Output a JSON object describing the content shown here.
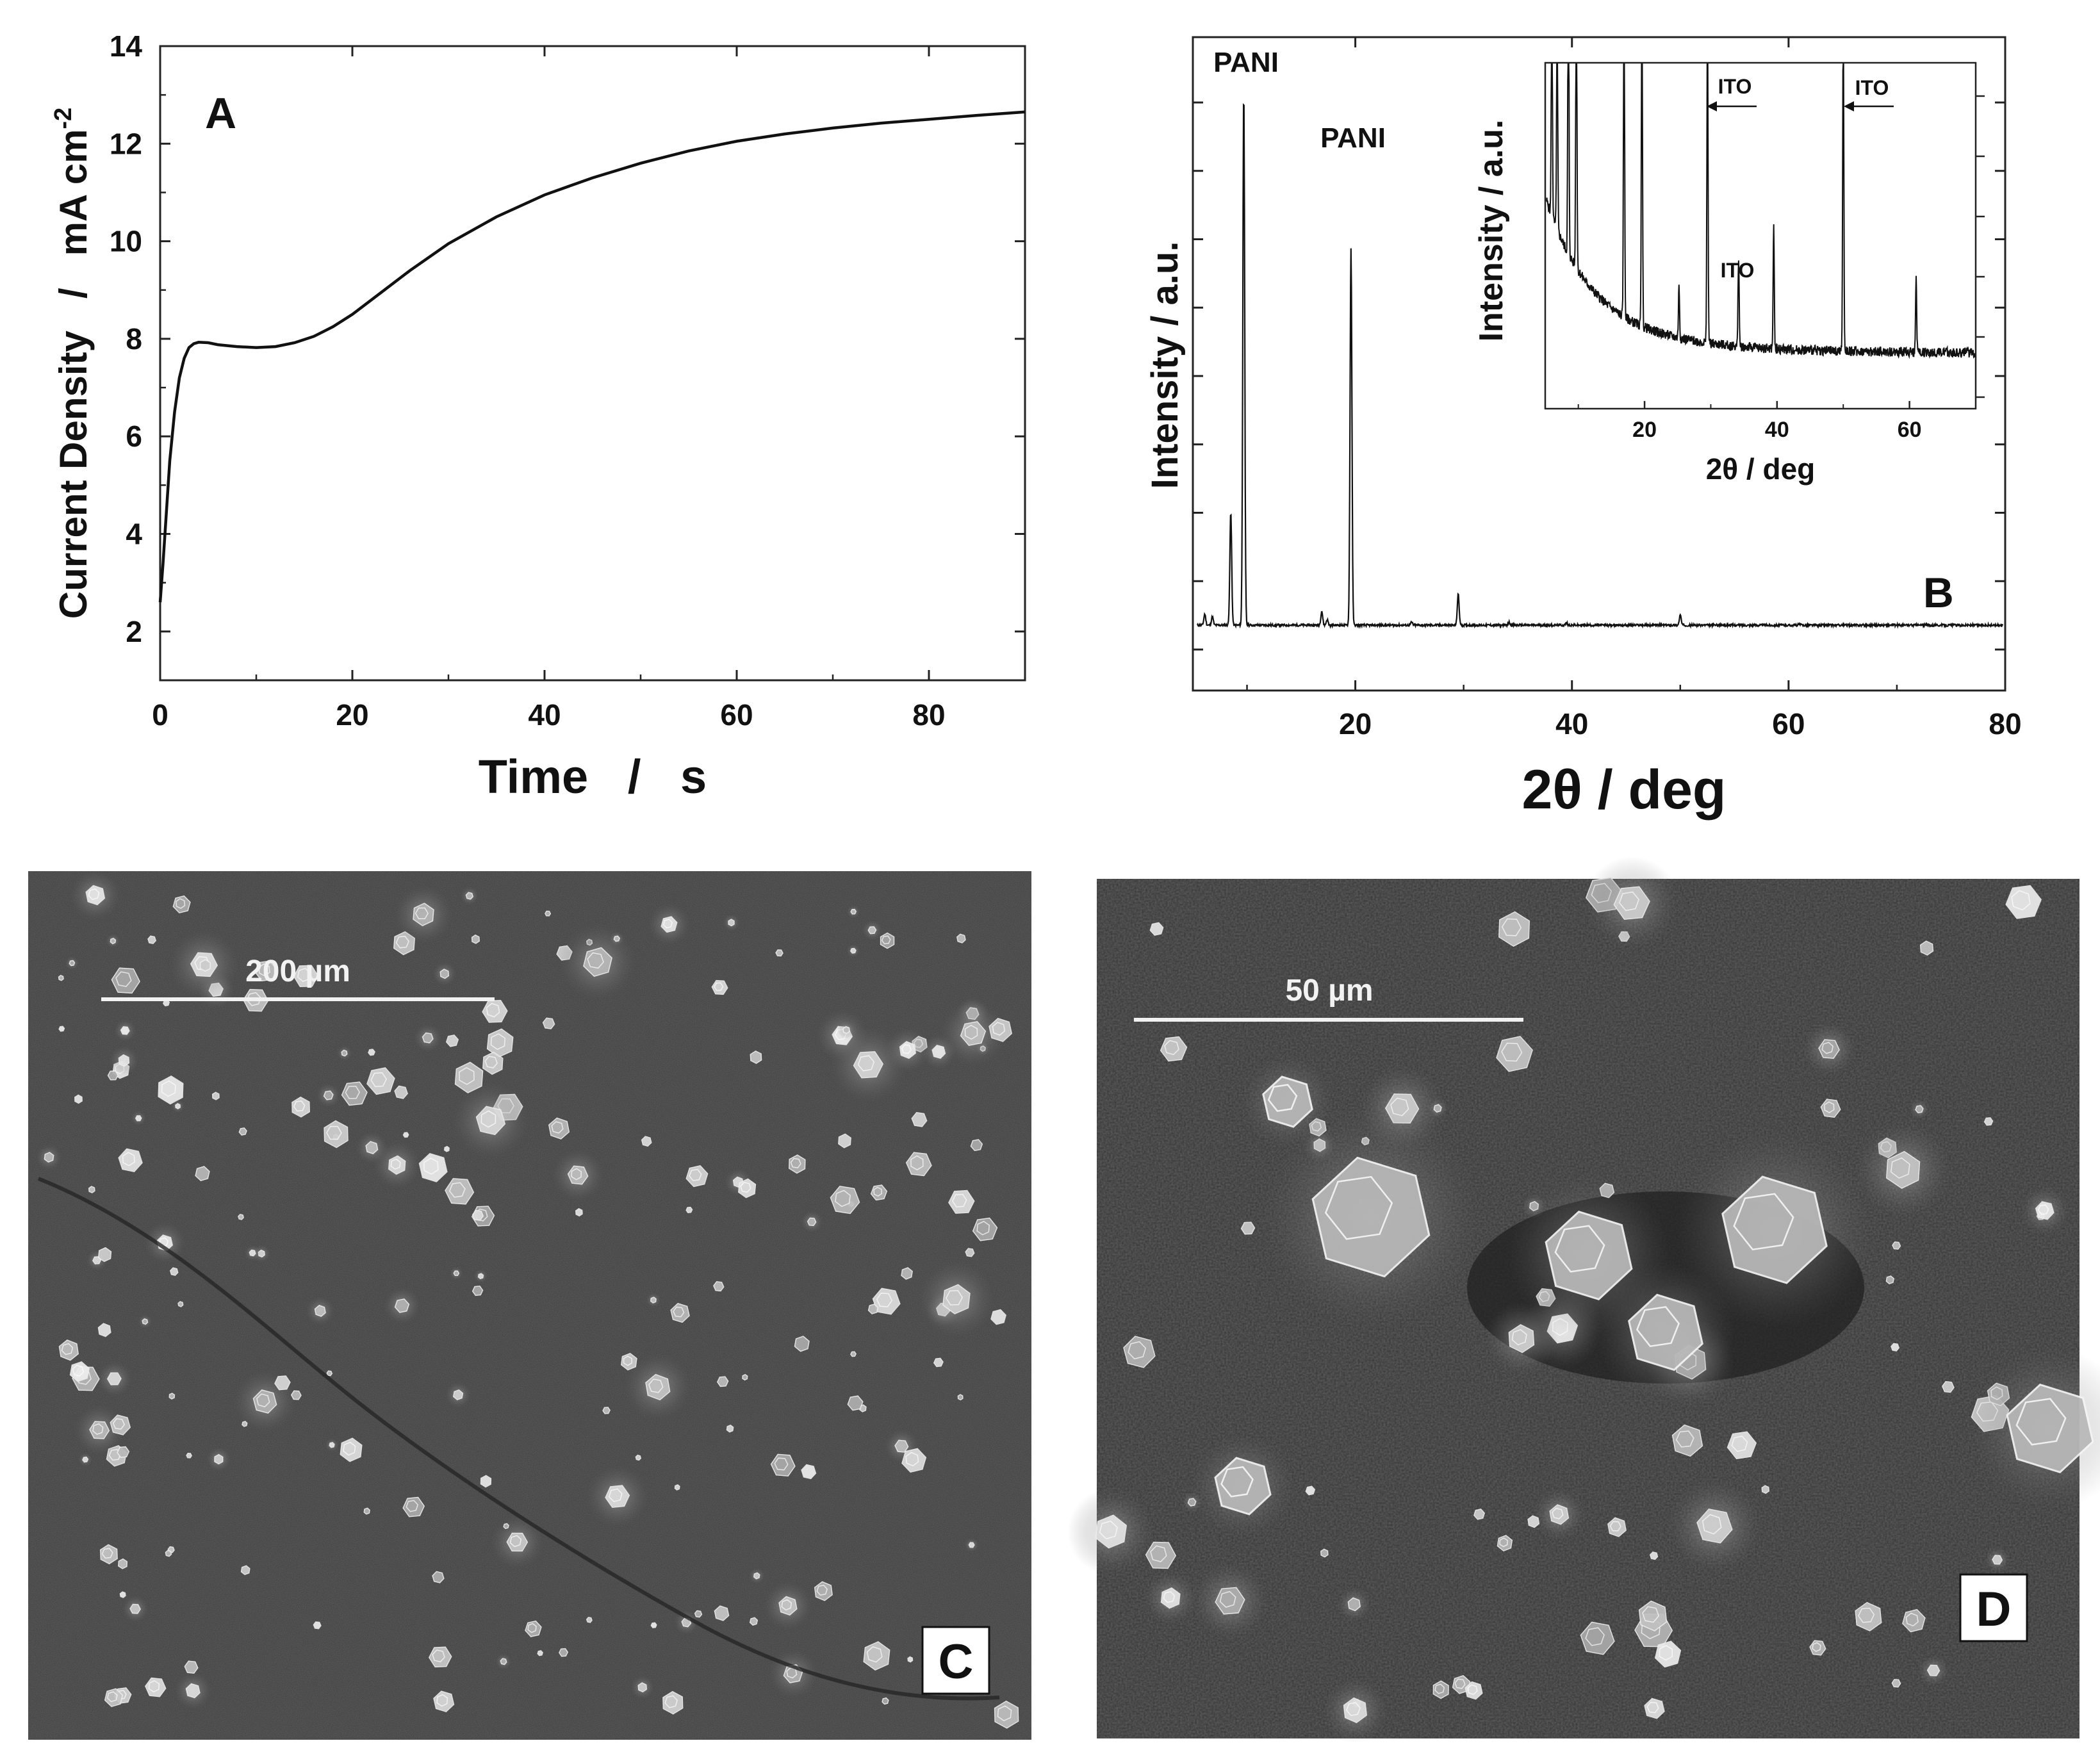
{
  "chart_data": [
    {
      "type": "line",
      "panel_label": "A",
      "xlabel": "Time   /   s",
      "ylabel_main": "Current Density   /   mA cm",
      "ylabel_sup": "-2",
      "xlim": [
        0,
        90
      ],
      "ylim": [
        1,
        14
      ],
      "xticks": [
        0,
        20,
        40,
        60,
        80
      ],
      "yticks": [
        2,
        4,
        6,
        8,
        10,
        12,
        14
      ],
      "grid": false,
      "series": [
        {
          "x": [
            0,
            0.3,
            0.7,
            1,
            1.5,
            2,
            2.5,
            3,
            3.5,
            4,
            5,
            6,
            8,
            10,
            12,
            14,
            16,
            18,
            20,
            23,
            26,
            30,
            35,
            40,
            45,
            50,
            55,
            60,
            65,
            70,
            75,
            80,
            85,
            90
          ],
          "y": [
            2.6,
            3.4,
            4.6,
            5.5,
            6.5,
            7.2,
            7.6,
            7.82,
            7.9,
            7.93,
            7.92,
            7.88,
            7.84,
            7.82,
            7.84,
            7.92,
            8.05,
            8.25,
            8.5,
            8.95,
            9.4,
            9.95,
            10.5,
            10.95,
            11.3,
            11.6,
            11.85,
            12.05,
            12.2,
            12.32,
            12.42,
            12.5,
            12.58,
            12.65
          ]
        }
      ]
    },
    {
      "type": "line",
      "panel_label": "B",
      "xlabel": "2θ / deg",
      "ylabel": "Intensity / a.u.",
      "xlim": [
        5,
        80
      ],
      "xticks": [
        20,
        40,
        60,
        80
      ],
      "yticks_count": 9,
      "grid": false,
      "annotations": [
        "PANI",
        "PANI"
      ],
      "series": [
        {
          "baseline": 0.05,
          "peaks": [
            {
              "x": 6.1,
              "h": 0.07
            },
            {
              "x": 6.8,
              "h": 0.065
            },
            {
              "x": 8.5,
              "h": 0.25
            },
            {
              "x": 9.7,
              "h": 1.0
            },
            {
              "x": 16.9,
              "h": 0.075
            },
            {
              "x": 17.4,
              "h": 0.06
            },
            {
              "x": 19.6,
              "h": 0.72
            },
            {
              "x": 25.2,
              "h": 0.055
            },
            {
              "x": 29.5,
              "h": 0.105
            },
            {
              "x": 34.2,
              "h": 0.055
            },
            {
              "x": 39.5,
              "h": 0.054
            },
            {
              "x": 50.0,
              "h": 0.068
            },
            {
              "x": 61.0,
              "h": 0.052
            }
          ]
        }
      ],
      "inset": {
        "xlabel": "2θ / deg",
        "ylabel": "Intensity / a.u.",
        "xlim": [
          5,
          70
        ],
        "xticks": [
          20,
          40,
          60
        ],
        "annotations": [
          "ITO",
          "ITO",
          "ITO"
        ],
        "peaks": [
          {
            "x": 6.0,
            "h": 0.85
          },
          {
            "x": 6.8,
            "h": 0.8
          },
          {
            "x": 8.5,
            "h": 1.2
          },
          {
            "x": 9.7,
            "h": 1.2
          },
          {
            "x": 16.9,
            "h": 1.2
          },
          {
            "x": 19.6,
            "h": 1.2
          },
          {
            "x": 25.2,
            "h": 0.18
          },
          {
            "x": 29.5,
            "h": 1.2
          },
          {
            "x": 34.2,
            "h": 0.32
          },
          {
            "x": 39.5,
            "h": 0.43
          },
          {
            "x": 50.0,
            "h": 1.2
          },
          {
            "x": 61.0,
            "h": 0.27
          }
        ]
      }
    }
  ],
  "micrographs": {
    "c": {
      "panel_label": "C",
      "scale_bar": "200 µm"
    },
    "d": {
      "panel_label": "D",
      "scale_bar": "50 µm"
    }
  }
}
